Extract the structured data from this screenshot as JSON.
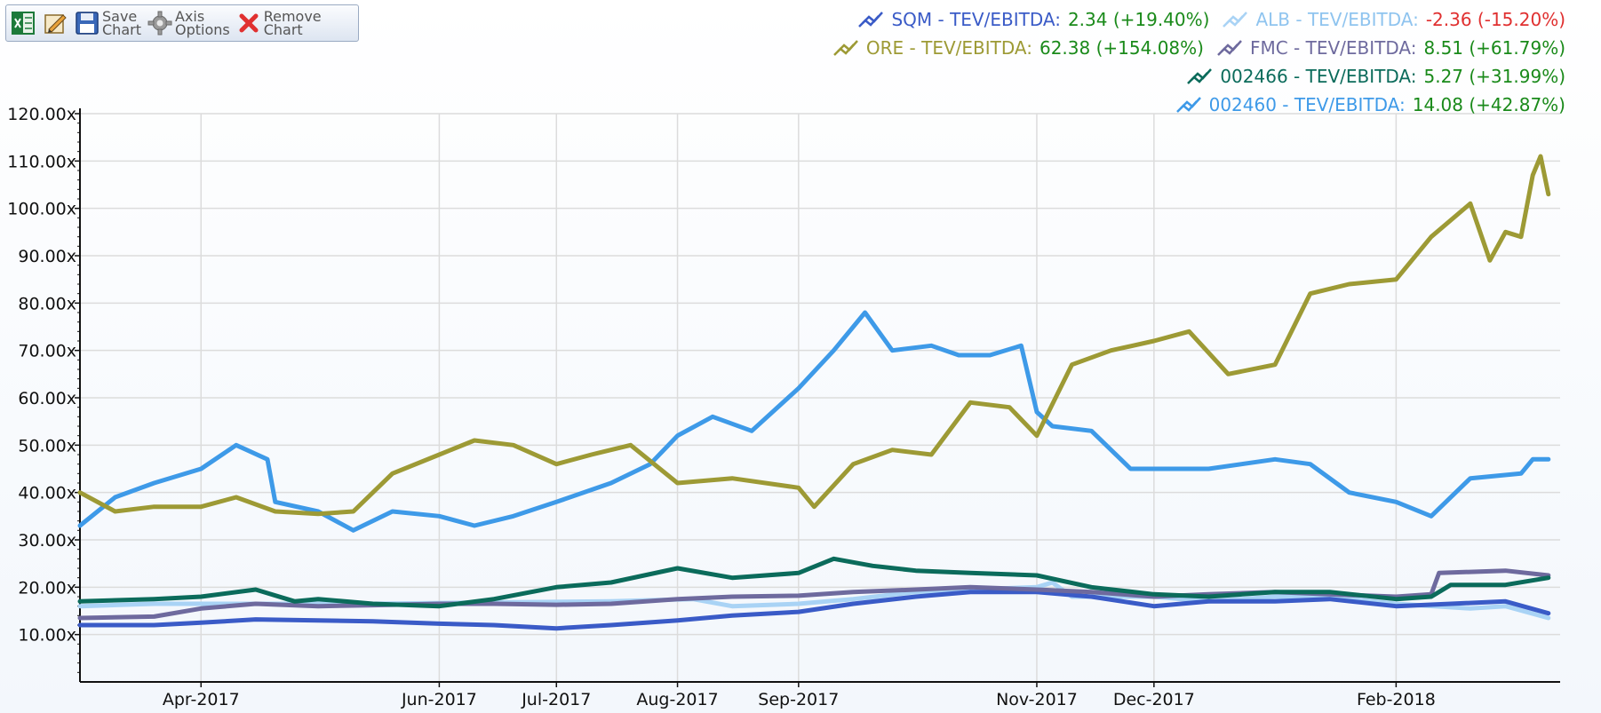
{
  "toolbar": {
    "buttons": [
      {
        "name": "excel-export-button",
        "icon": "excel-icon",
        "label": ""
      },
      {
        "name": "edit-chart-button",
        "icon": "edit-chart-icon",
        "label": ""
      },
      {
        "name": "save-chart-button",
        "icon": "floppy-disk-icon",
        "label": "Save\nChart"
      },
      {
        "name": "axis-options-button",
        "icon": "gear-icon",
        "label": "Axis\nOptions"
      },
      {
        "name": "remove-chart-button",
        "icon": "red-x-icon",
        "label": "Remove\nChart"
      }
    ]
  },
  "legend": [
    {
      "name": "SQM - TEV/EBITDA:",
      "value": "2.34 (+19.40%)",
      "color": "#3a5bc7",
      "negative": false
    },
    {
      "name": "ALB - TEV/EBITDA:",
      "value": "-2.36 (-15.20%)",
      "color": "#a9d3f5",
      "negative": true
    },
    {
      "name": "ORE - TEV/EBITDA:",
      "value": "62.38 (+154.08%)",
      "color": "#9d9a35",
      "negative": false
    },
    {
      "name": "FMC - TEV/EBITDA:",
      "value": "8.51 (+61.79%)",
      "color": "#6e6a9e",
      "negative": false
    },
    {
      "name": "002466 - TEV/EBITDA:",
      "value": "5.27 (+31.99%)",
      "color": "#0b6b5b",
      "negative": false
    },
    {
      "name": "002460 - TEV/EBITDA:",
      "value": "14.08 (+42.87%)",
      "color": "#3e9ae8",
      "negative": false
    }
  ],
  "chart_data": {
    "type": "line",
    "ylim": [
      0,
      120
    ],
    "y_ticks": [
      "10.00x",
      "20.00x",
      "30.00x",
      "40.00x",
      "50.00x",
      "60.00x",
      "70.00x",
      "80.00x",
      "90.00x",
      "100.00x",
      "110.00x",
      "120.00x"
    ],
    "x_range": [
      "2017-03-01",
      "2018-03-15"
    ],
    "x_ticks": [
      {
        "date": "2017-04-01",
        "label": "Apr-2017"
      },
      {
        "date": "2017-06-01",
        "label": "Jun-2017"
      },
      {
        "date": "2017-07-01",
        "label": "Jul-2017"
      },
      {
        "date": "2017-08-01",
        "label": "Aug-2017"
      },
      {
        "date": "2017-09-01",
        "label": "Sep-2017"
      },
      {
        "date": "2017-11-01",
        "label": "Nov-2017"
      },
      {
        "date": "2017-12-01",
        "label": "Dec-2017"
      },
      {
        "date": "2018-02-01",
        "label": "Feb-2018"
      }
    ],
    "grid": true,
    "legend_position": "top-right",
    "series": [
      {
        "name": "ALB - TEV/EBITDA",
        "color": "#a9d3f5",
        "points": [
          [
            "2017-03-01",
            16
          ],
          [
            "2017-03-20",
            16.5
          ],
          [
            "2017-04-15",
            16.5
          ],
          [
            "2017-05-15",
            16.5
          ],
          [
            "2017-06-15",
            16.8
          ],
          [
            "2017-07-15",
            17
          ],
          [
            "2017-08-05",
            17.5
          ],
          [
            "2017-08-15",
            16
          ],
          [
            "2017-09-01",
            16.5
          ],
          [
            "2017-09-15",
            17.5
          ],
          [
            "2017-10-01",
            19
          ],
          [
            "2017-10-15",
            19.5
          ],
          [
            "2017-11-01",
            20
          ],
          [
            "2017-11-05",
            21
          ],
          [
            "2017-11-10",
            18
          ],
          [
            "2017-12-01",
            18
          ],
          [
            "2017-12-15",
            17
          ],
          [
            "2018-01-01",
            18
          ],
          [
            "2018-01-15",
            18
          ],
          [
            "2018-02-01",
            16.5
          ],
          [
            "2018-02-20",
            15.5
          ],
          [
            "2018-03-01",
            16
          ],
          [
            "2018-03-12",
            13.5
          ]
        ]
      },
      {
        "name": "SQM - TEV/EBITDA",
        "color": "#3a5bc7",
        "points": [
          [
            "2017-03-01",
            12
          ],
          [
            "2017-03-20",
            12
          ],
          [
            "2017-04-01",
            12.5
          ],
          [
            "2017-04-15",
            13.2
          ],
          [
            "2017-05-01",
            13
          ],
          [
            "2017-05-15",
            12.8
          ],
          [
            "2017-06-01",
            12.3
          ],
          [
            "2017-06-15",
            12
          ],
          [
            "2017-07-01",
            11.3
          ],
          [
            "2017-07-15",
            12
          ],
          [
            "2017-08-01",
            13
          ],
          [
            "2017-08-15",
            14
          ],
          [
            "2017-09-01",
            14.8
          ],
          [
            "2017-09-15",
            16.5
          ],
          [
            "2017-10-01",
            18
          ],
          [
            "2017-10-15",
            19
          ],
          [
            "2017-11-01",
            19
          ],
          [
            "2017-11-15",
            18
          ],
          [
            "2017-12-01",
            16
          ],
          [
            "2017-12-15",
            17
          ],
          [
            "2018-01-01",
            17
          ],
          [
            "2018-01-15",
            17.5
          ],
          [
            "2018-02-01",
            16
          ],
          [
            "2018-02-15",
            16.5
          ],
          [
            "2018-03-01",
            17
          ],
          [
            "2018-03-12",
            14.5
          ]
        ]
      },
      {
        "name": "FMC - TEV/EBITDA",
        "color": "#6e6a9e",
        "points": [
          [
            "2017-03-01",
            13.5
          ],
          [
            "2017-03-20",
            13.8
          ],
          [
            "2017-04-01",
            15.5
          ],
          [
            "2017-04-15",
            16.5
          ],
          [
            "2017-05-01",
            16
          ],
          [
            "2017-05-15",
            16.2
          ],
          [
            "2017-06-01",
            16.5
          ],
          [
            "2017-06-15",
            16.5
          ],
          [
            "2017-07-01",
            16.3
          ],
          [
            "2017-07-15",
            16.5
          ],
          [
            "2017-08-01",
            17.5
          ],
          [
            "2017-08-15",
            18
          ],
          [
            "2017-09-01",
            18.2
          ],
          [
            "2017-09-15",
            19
          ],
          [
            "2017-10-01",
            19.5
          ],
          [
            "2017-10-15",
            20
          ],
          [
            "2017-11-01",
            19.5
          ],
          [
            "2017-11-15",
            19
          ],
          [
            "2017-12-01",
            18
          ],
          [
            "2017-12-15",
            18.5
          ],
          [
            "2018-01-01",
            19
          ],
          [
            "2018-01-15",
            18.5
          ],
          [
            "2018-02-01",
            18
          ],
          [
            "2018-02-10",
            18.5
          ],
          [
            "2018-02-12",
            23
          ],
          [
            "2018-03-01",
            23.5
          ],
          [
            "2018-03-12",
            22.5
          ]
        ]
      },
      {
        "name": "002466 - TEV/EBITDA",
        "color": "#0b6b5b",
        "points": [
          [
            "2017-03-01",
            17
          ],
          [
            "2017-03-20",
            17.5
          ],
          [
            "2017-04-01",
            18
          ],
          [
            "2017-04-15",
            19.5
          ],
          [
            "2017-04-25",
            17
          ],
          [
            "2017-05-01",
            17.5
          ],
          [
            "2017-05-15",
            16.5
          ],
          [
            "2017-06-01",
            16
          ],
          [
            "2017-06-15",
            17.5
          ],
          [
            "2017-07-01",
            20
          ],
          [
            "2017-07-15",
            21
          ],
          [
            "2017-08-01",
            24
          ],
          [
            "2017-08-15",
            22
          ],
          [
            "2017-09-01",
            23
          ],
          [
            "2017-09-10",
            26
          ],
          [
            "2017-09-20",
            24.5
          ],
          [
            "2017-10-01",
            23.5
          ],
          [
            "2017-10-15",
            23
          ],
          [
            "2017-11-01",
            22.5
          ],
          [
            "2017-11-15",
            20
          ],
          [
            "2017-12-01",
            18.5
          ],
          [
            "2017-12-15",
            18
          ],
          [
            "2018-01-01",
            19
          ],
          [
            "2018-01-15",
            19
          ],
          [
            "2018-02-01",
            17.5
          ],
          [
            "2018-02-10",
            18
          ],
          [
            "2018-02-15",
            20.5
          ],
          [
            "2018-03-01",
            20.5
          ],
          [
            "2018-03-12",
            22
          ]
        ]
      },
      {
        "name": "002460 - TEV/EBITDA",
        "color": "#3e9ae8",
        "points": [
          [
            "2017-03-01",
            33
          ],
          [
            "2017-03-10",
            39
          ],
          [
            "2017-03-20",
            42
          ],
          [
            "2017-04-01",
            45
          ],
          [
            "2017-04-10",
            50
          ],
          [
            "2017-04-18",
            47
          ],
          [
            "2017-04-20",
            38
          ],
          [
            "2017-05-01",
            36
          ],
          [
            "2017-05-10",
            32
          ],
          [
            "2017-05-20",
            36
          ],
          [
            "2017-06-01",
            35
          ],
          [
            "2017-06-10",
            33
          ],
          [
            "2017-06-20",
            35
          ],
          [
            "2017-07-01",
            38
          ],
          [
            "2017-07-15",
            42
          ],
          [
            "2017-07-25",
            46
          ],
          [
            "2017-08-01",
            52
          ],
          [
            "2017-08-10",
            56
          ],
          [
            "2017-08-20",
            53
          ],
          [
            "2017-09-01",
            62
          ],
          [
            "2017-09-10",
            70
          ],
          [
            "2017-09-18",
            78
          ],
          [
            "2017-09-25",
            70
          ],
          [
            "2017-10-05",
            71
          ],
          [
            "2017-10-12",
            69
          ],
          [
            "2017-10-20",
            69
          ],
          [
            "2017-10-28",
            71
          ],
          [
            "2017-11-01",
            57
          ],
          [
            "2017-11-05",
            54
          ],
          [
            "2017-11-15",
            53
          ],
          [
            "2017-11-25",
            45
          ],
          [
            "2017-12-05",
            45
          ],
          [
            "2017-12-15",
            45
          ],
          [
            "2018-01-01",
            47
          ],
          [
            "2018-01-10",
            46
          ],
          [
            "2018-01-20",
            40
          ],
          [
            "2018-02-01",
            38
          ],
          [
            "2018-02-10",
            35
          ],
          [
            "2018-02-20",
            43
          ],
          [
            "2018-03-05",
            44
          ],
          [
            "2018-03-08",
            47
          ],
          [
            "2018-03-12",
            47
          ]
        ]
      },
      {
        "name": "ORE - TEV/EBITDA",
        "color": "#9d9a35",
        "points": [
          [
            "2017-03-01",
            40
          ],
          [
            "2017-03-10",
            36
          ],
          [
            "2017-03-20",
            37
          ],
          [
            "2017-04-01",
            37
          ],
          [
            "2017-04-10",
            39
          ],
          [
            "2017-04-20",
            36
          ],
          [
            "2017-05-01",
            35.5
          ],
          [
            "2017-05-10",
            36
          ],
          [
            "2017-05-20",
            44
          ],
          [
            "2017-06-01",
            48
          ],
          [
            "2017-06-10",
            51
          ],
          [
            "2017-06-20",
            50
          ],
          [
            "2017-07-01",
            46
          ],
          [
            "2017-07-10",
            48
          ],
          [
            "2017-07-20",
            50
          ],
          [
            "2017-08-01",
            42
          ],
          [
            "2017-08-15",
            43
          ],
          [
            "2017-09-01",
            41
          ],
          [
            "2017-09-05",
            37
          ],
          [
            "2017-09-15",
            46
          ],
          [
            "2017-09-25",
            49
          ],
          [
            "2017-10-05",
            48
          ],
          [
            "2017-10-15",
            59
          ],
          [
            "2017-10-25",
            58
          ],
          [
            "2017-11-01",
            52
          ],
          [
            "2017-11-10",
            67
          ],
          [
            "2017-11-20",
            70
          ],
          [
            "2017-12-01",
            72
          ],
          [
            "2017-12-10",
            74
          ],
          [
            "2017-12-20",
            65
          ],
          [
            "2018-01-01",
            67
          ],
          [
            "2018-01-10",
            82
          ],
          [
            "2018-01-20",
            84
          ],
          [
            "2018-02-01",
            85
          ],
          [
            "2018-02-10",
            94
          ],
          [
            "2018-02-20",
            101
          ],
          [
            "2018-02-25",
            89
          ],
          [
            "2018-03-01",
            95
          ],
          [
            "2018-03-05",
            94
          ],
          [
            "2018-03-08",
            107
          ],
          [
            "2018-03-10",
            111
          ],
          [
            "2018-03-12",
            103
          ]
        ]
      }
    ]
  }
}
